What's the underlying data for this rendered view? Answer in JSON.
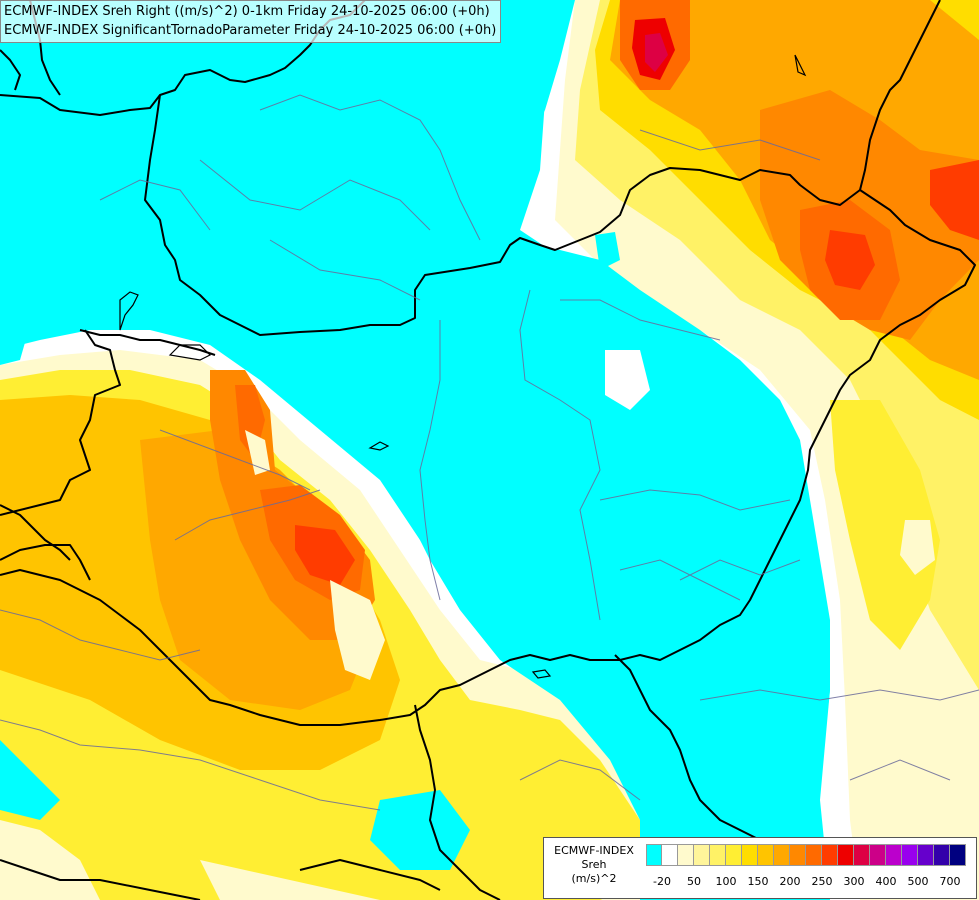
{
  "header": {
    "line1": "ECMWF-INDEX Sreh Right ((m/s)^2) 0-1km Friday 24-10-2025 06:00 (+0h)",
    "line2": "ECMWF-INDEX SignificantTornadoParameter Friday 24-10-2025 06:00 (+0h)"
  },
  "legend": {
    "model": "ECMWF-INDEX",
    "param": "Sreh",
    "unit": "(m/s)^2",
    "colors": [
      "#00ffff",
      "#ffffff",
      "#fffacd",
      "#fff59a",
      "#fff266",
      "#ffee33",
      "#ffdd00",
      "#ffc400",
      "#ffa800",
      "#ff8800",
      "#ff6a00",
      "#ff3c00",
      "#ee0000",
      "#dd0044",
      "#cc0088",
      "#bb00cc",
      "#9900ee",
      "#6600cc",
      "#3300aa",
      "#000080"
    ],
    "ticks": [
      "-20",
      "50",
      "100",
      "150",
      "200",
      "250",
      "300",
      "400",
      "500",
      "700"
    ]
  }
}
